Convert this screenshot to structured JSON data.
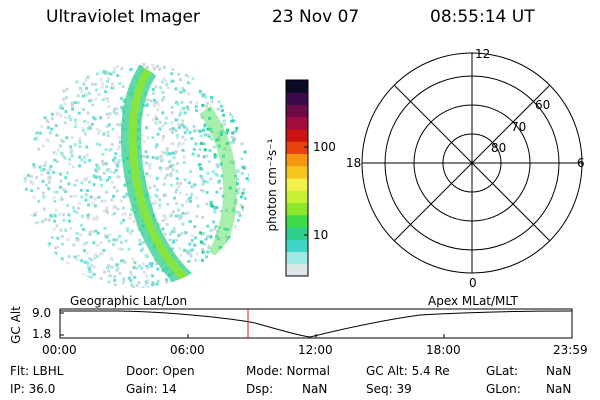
{
  "header": {
    "title": "Ultraviolet Imager",
    "date": "23 Nov 07",
    "time": "08:55:14 UT"
  },
  "colorbar": {
    "label": "photon cm⁻²s⁻¹",
    "ticks": [
      "100",
      "10"
    ],
    "colors": [
      "#dfe6ea",
      "#9fe9e3",
      "#3fd6c8",
      "#2ecf8b",
      "#3fdc4a",
      "#8de82d",
      "#c8f035",
      "#f2f04a",
      "#f8c51d",
      "#f8950e",
      "#e8420f",
      "#cc1313",
      "#a30b3b",
      "#6d0b48",
      "#3a0a4a",
      "#0b0b26"
    ]
  },
  "polar_grid": {
    "mlt_labels": [
      "12",
      "18",
      "6",
      "0"
    ],
    "lat_labels": [
      "60",
      "70",
      "80"
    ]
  },
  "timeline": {
    "left_label": "Geographic Lat/Lon",
    "right_label": "Apex MLat/MLT",
    "axis_title": "GC Alt",
    "y_ticks": [
      "9.0",
      "1.8"
    ],
    "x_ticks": [
      "00:00",
      "06:00",
      "12:00",
      "18:00",
      "23:59"
    ],
    "cursor_time": "08:55"
  },
  "status": {
    "flt": "Flt: LBHL",
    "ip": "IP: 36.0",
    "door": "Door: Open",
    "gain": "Gain: 14",
    "mode": "Mode: Normal",
    "dsp_label": "Dsp:",
    "dsp_value": "NaN",
    "gc_alt": "GC Alt: 5.4 Re",
    "seq": "Seq: 39",
    "glat_label": "GLat:",
    "glat_value": "NaN",
    "glon_label": "GLon:",
    "glon_value": "NaN"
  }
}
